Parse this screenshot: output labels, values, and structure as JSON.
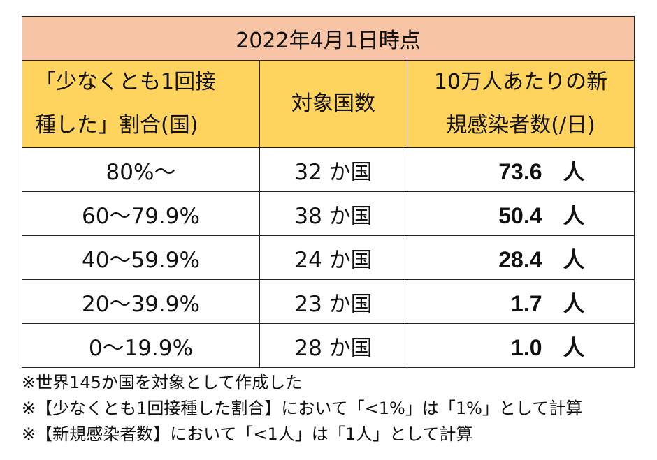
{
  "title": "2022年4月1日時点",
  "headers": {
    "rate": [
      "「少なくとも1回接",
      "種した」割合(国)"
    ],
    "count": "対象国数",
    "infection": [
      "10万人あたりの新",
      "規感染者数(/日)"
    ]
  },
  "rows": [
    {
      "rate": "80%〜",
      "count": "32 か国",
      "infection": "73.6",
      "unit": "人"
    },
    {
      "rate": "60〜79.9%",
      "count": "38 か国",
      "infection": "50.4",
      "unit": "人"
    },
    {
      "rate": "40〜59.9%",
      "count": "24 か国",
      "infection": "28.4",
      "unit": "人"
    },
    {
      "rate": "20〜39.9%",
      "count": "23 か国",
      "infection": "1.7",
      "unit": "人"
    },
    {
      "rate": "0〜19.9%",
      "count": "28 か国",
      "infection": "1.0",
      "unit": "人"
    }
  ],
  "notes": [
    "※世界145か国を対象として作成した",
    "※【少なくとも1回接種した割合】において「<1%」は「1%」として計算",
    "※【新規感染者数】において「<1人」は「1人」として計算"
  ],
  "colors": {
    "title_bg": "#f7c4a5",
    "header_bg": "#ffd45e"
  }
}
